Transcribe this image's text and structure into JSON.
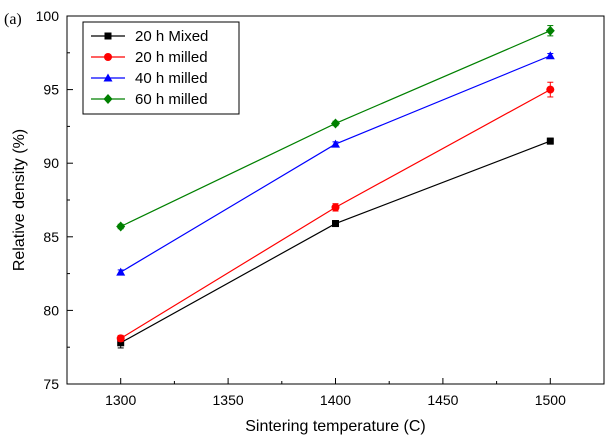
{
  "chart_data": {
    "type": "line",
    "panel_label": "(a)",
    "xlabel": "Sintering temperature (C)",
    "ylabel": "Relative density (%)",
    "xlim": [
      1275,
      1525
    ],
    "ylim": [
      75,
      100
    ],
    "x": [
      1300,
      1400,
      1500
    ],
    "x_ticks": [
      1300,
      1350,
      1400,
      1450,
      1500
    ],
    "y_ticks": [
      75,
      80,
      85,
      90,
      95,
      100
    ],
    "grid": false,
    "legend_position": "top-left",
    "series": [
      {
        "name": "20 h Mixed",
        "color": "#000000",
        "marker": "square",
        "values": [
          77.8,
          85.9,
          91.5
        ],
        "errors": [
          0.35,
          0.2,
          0.2
        ]
      },
      {
        "name": "20 h milled",
        "color": "#ff0000",
        "marker": "circle",
        "values": [
          78.1,
          87.0,
          95.0
        ],
        "errors": [
          0.2,
          0.25,
          0.5
        ]
      },
      {
        "name": "40 h milled",
        "color": "#0000ff",
        "marker": "triangle",
        "values": [
          82.6,
          91.3,
          97.3
        ],
        "errors": [
          0.15,
          0.15,
          0.15
        ]
      },
      {
        "name": "60 h milled",
        "color": "#008000",
        "marker": "diamond",
        "values": [
          85.7,
          92.7,
          99.0
        ],
        "errors": [
          0.15,
          0.15,
          0.35
        ]
      }
    ]
  }
}
